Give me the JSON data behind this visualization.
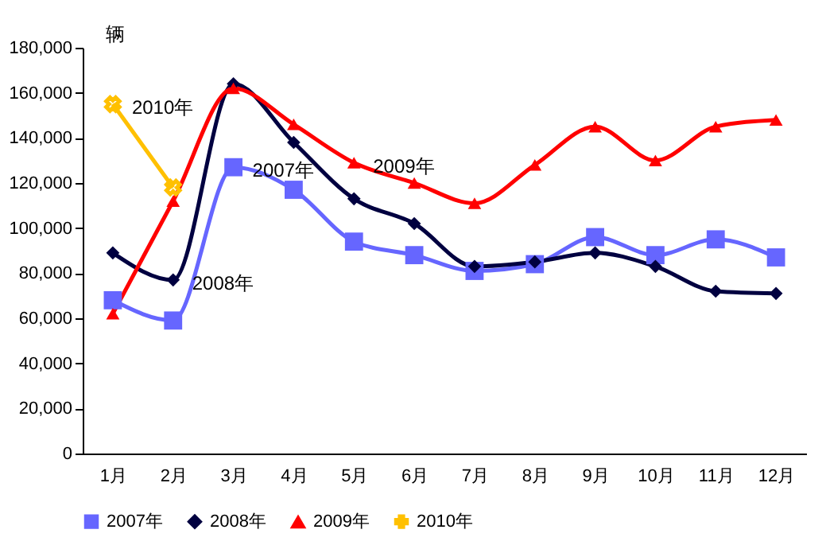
{
  "chart_data": {
    "type": "line",
    "ylabel": "辆",
    "categories": [
      "1月",
      "2月",
      "3月",
      "4月",
      "5月",
      "6月",
      "7月",
      "8月",
      "9月",
      "10月",
      "11月",
      "12月"
    ],
    "series": [
      {
        "name": "2007年",
        "color": "#6666ff",
        "marker": "square",
        "values": [
          68000,
          59000,
          127000,
          117000,
          94000,
          88000,
          81000,
          84000,
          96000,
          88000,
          95000,
          87000
        ]
      },
      {
        "name": "2008年",
        "color": "#000040",
        "marker": "diamond",
        "values": [
          89000,
          77000,
          164000,
          138000,
          113000,
          102000,
          83000,
          85000,
          89000,
          83000,
          72000,
          71000
        ]
      },
      {
        "name": "2009年",
        "color": "#ff0000",
        "marker": "triangle",
        "values": [
          62000,
          112000,
          162000,
          146000,
          129000,
          120000,
          111000,
          128000,
          145000,
          130000,
          145000,
          148000
        ]
      },
      {
        "name": "2010年",
        "color": "#ffc000",
        "marker": "cross",
        "values": [
          155000,
          118000,
          null,
          null,
          null,
          null,
          null,
          null,
          null,
          null,
          null,
          null
        ]
      }
    ],
    "annotations": [
      {
        "text": "2010年",
        "x": "1月",
        "y": 155000
      },
      {
        "text": "2007年",
        "x": "3月",
        "y": 127000
      },
      {
        "text": "2008年",
        "x": "2月",
        "y": 77000
      },
      {
        "text": "2009年",
        "x": "5月",
        "y": 129000
      }
    ],
    "ylim": [
      0,
      180000
    ],
    "yticks": [
      0,
      {
        "value": 20000,
        "label": "20,000"
      },
      {
        "value": 40000,
        "label": "40,000"
      },
      {
        "value": 60000,
        "label": "60,000"
      },
      {
        "value": 80000,
        "label": "80,000"
      },
      {
        "value": 100000,
        "label": "100,000"
      },
      {
        "value": 120000,
        "label": "120,000"
      },
      {
        "value": 140000,
        "label": "140,000"
      },
      {
        "value": 160000,
        "label": "160,000"
      },
      {
        "value": 180000,
        "label": "180,000"
      }
    ],
    "grid": false,
    "legend": "bottom",
    "line_style": "solid"
  }
}
